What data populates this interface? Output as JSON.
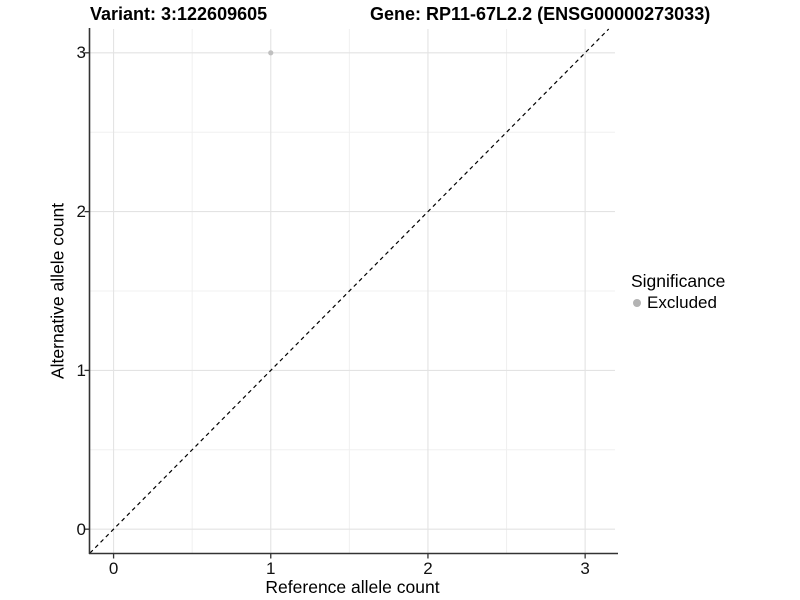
{
  "chart_data": {
    "type": "scatter",
    "titles": {
      "left": "Variant: 3:122609605",
      "right": "Gene: RP11-67L2.2 (ENSG00000273033)"
    },
    "xlabel": "Reference allele count",
    "ylabel": "Alternative allele count",
    "xlim": [
      -0.15,
      3.19
    ],
    "ylim": [
      -0.15,
      3.15
    ],
    "x_ticks": [
      0,
      1,
      2,
      3
    ],
    "y_ticks": [
      0,
      1,
      2,
      3
    ],
    "x_minor_gridlines": [
      0.5,
      1.5,
      2.5
    ],
    "y_minor_gridlines": [
      0.5,
      1.5,
      2.5
    ],
    "grid": "on",
    "series": [
      {
        "name": "Excluded",
        "color": "#c0c0c0",
        "points": [
          {
            "x": 1,
            "y": 3
          }
        ]
      }
    ],
    "reference_line": {
      "equation": "y = x",
      "style": "dashed",
      "color": "#000000"
    },
    "legend": {
      "title": "Significance",
      "position": "right",
      "entries": [
        {
          "label": "Excluded",
          "color": "#b3b3b3"
        }
      ]
    },
    "colors": {
      "background": "#ffffff",
      "grid_major": "#e3e3e3",
      "grid_minor": "#f0f0f0",
      "axis_line": "#333333",
      "tick": "#333333",
      "text": "#000000"
    }
  }
}
